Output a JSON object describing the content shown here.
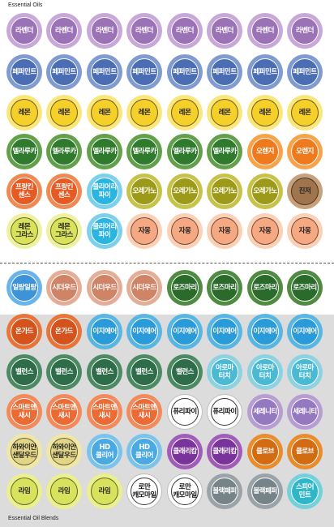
{
  "sheet_top_label": "Essential Oils",
  "sheet_bottom_label": "Essential Oil Blends",
  "colors": {
    "lavender": {
      "outer": "#c7a8d8",
      "inner": "#9a72b5",
      "text": "#ffffff"
    },
    "peppermint": {
      "outer": "#7f9bd0",
      "inner": "#4a6db4",
      "text": "#ffffff"
    },
    "lemon": {
      "outer": "#fbe67c",
      "inner": "#f5cf2a",
      "text": "#222222",
      "dark": true
    },
    "melaleuca": {
      "outer": "#62a04c",
      "inner": "#2f7a2c",
      "text": "#ffffff"
    },
    "orange": {
      "outer": "#f7a34a",
      "inner": "#ef7a1d",
      "text": "#ffffff"
    },
    "frankincense": {
      "outer": "#f08a55",
      "inner": "#e75a23",
      "text": "#ffffff"
    },
    "clary": {
      "outer": "#7cd0ec",
      "inner": "#2ab4e2",
      "text": "#ffffff"
    },
    "oregano": {
      "outer": "#c7c249",
      "inner": "#9c9a18",
      "text": "#ffffff"
    },
    "vetiver": {
      "outer": "#c7a07c",
      "inner": "#a0754e",
      "text": "#222222",
      "dark": true
    },
    "lemongrass": {
      "outer": "#eef2a0",
      "inner": "#d9e25a",
      "text": "#222222",
      "dark": true
    },
    "thyme": {
      "outer": "#fbd0b4",
      "inner": "#f6a883",
      "text": "#222222",
      "dark": true
    },
    "ylang": {
      "outer": "#6ab4ec",
      "inner": "#3d93d8",
      "text": "#ffffff"
    },
    "cedarwood": {
      "outer": "#e4ad95",
      "inner": "#cf8468",
      "text": "#ffffff"
    },
    "rosemary": {
      "outer": "#4f8c42",
      "inner": "#2a6a2a",
      "text": "#ffffff"
    },
    "onguard": {
      "outer": "#e8743a",
      "inner": "#d4531c",
      "text": "#ffffff"
    },
    "easyair": {
      "outer": "#59b6e3",
      "inner": "#2a9ad8",
      "text": "#ffffff"
    },
    "balance": {
      "outer": "#4c8a64",
      "inner": "#2e6c4a",
      "text": "#ffffff"
    },
    "aromatouch": {
      "outer": "#8dd2e2",
      "inner": "#4ab9d3",
      "text": "#ffffff"
    },
    "slim": {
      "outer": "#f38a5c",
      "inner": "#ec6a33",
      "text": "#ffffff"
    },
    "purify": {
      "outer": "#ffffff",
      "inner": "#ffffff",
      "text": "#111111",
      "dark": true
    },
    "serenity": {
      "outer": "#b69ed3",
      "inner": "#9479c1",
      "text": "#ffffff"
    },
    "hawaiian": {
      "outer": "#f0e7a6",
      "inner": "#e3d586",
      "text": "#222222",
      "dark": true
    },
    "hdclear": {
      "outer": "#7cc3ec",
      "inner": "#4aa8e2",
      "text": "#ffffff"
    },
    "clarycalm": {
      "outer": "#a05cb8",
      "inner": "#7a339a",
      "text": "#ffffff"
    },
    "clove": {
      "outer": "#e88c2c",
      "inner": "#d26b12",
      "text": "#ffffff"
    },
    "lime": {
      "outer": "#eaf08e",
      "inner": "#d8e25c",
      "text": "#222222",
      "dark": true
    },
    "chamomile": {
      "outer": "#ffffff",
      "inner": "#ffffff",
      "text": "#111111",
      "dark": true
    },
    "blackpepper": {
      "outer": "#9aa4a8",
      "inner": "#76848a",
      "text": "#ffffff"
    },
    "spearmint": {
      "outer": "#72d1dd",
      "inner": "#2fb6c8",
      "text": "#ffffff"
    }
  },
  "rows": [
    {
      "y": 16,
      "items": [
        {
          "name": "sticker-lavender",
          "label": "라벤더",
          "color": "lavender"
        },
        {
          "name": "sticker-lavender",
          "label": "라벤더",
          "color": "lavender"
        },
        {
          "name": "sticker-lavender",
          "label": "라벤더",
          "color": "lavender"
        },
        {
          "name": "sticker-lavender",
          "label": "라벤더",
          "color": "lavender"
        },
        {
          "name": "sticker-lavender",
          "label": "라벤더",
          "color": "lavender"
        },
        {
          "name": "sticker-lavender",
          "label": "라벤더",
          "color": "lavender"
        },
        {
          "name": "sticker-lavender",
          "label": "라벤더",
          "color": "lavender"
        },
        {
          "name": "sticker-lavender",
          "label": "라벤더",
          "color": "lavender"
        }
      ]
    },
    {
      "y": 67,
      "items": [
        {
          "name": "sticker-peppermint",
          "label": "페퍼민트",
          "color": "peppermint"
        },
        {
          "name": "sticker-peppermint",
          "label": "페퍼민트",
          "color": "peppermint"
        },
        {
          "name": "sticker-peppermint",
          "label": "페퍼민트",
          "color": "peppermint"
        },
        {
          "name": "sticker-peppermint",
          "label": "페퍼민트",
          "color": "peppermint"
        },
        {
          "name": "sticker-peppermint",
          "label": "페퍼민트",
          "color": "peppermint"
        },
        {
          "name": "sticker-peppermint",
          "label": "페퍼민트",
          "color": "peppermint"
        },
        {
          "name": "sticker-peppermint",
          "label": "페퍼민트",
          "color": "peppermint"
        },
        {
          "name": "sticker-peppermint",
          "label": "페퍼민트",
          "color": "peppermint"
        }
      ]
    },
    {
      "y": 117,
      "items": [
        {
          "name": "sticker-lemon",
          "label": "레몬",
          "color": "lemon"
        },
        {
          "name": "sticker-lemon",
          "label": "레몬",
          "color": "lemon"
        },
        {
          "name": "sticker-lemon",
          "label": "레몬",
          "color": "lemon"
        },
        {
          "name": "sticker-lemon",
          "label": "레몬",
          "color": "lemon"
        },
        {
          "name": "sticker-lemon",
          "label": "레몬",
          "color": "lemon"
        },
        {
          "name": "sticker-lemon",
          "label": "레몬",
          "color": "lemon"
        },
        {
          "name": "sticker-lemon",
          "label": "레몬",
          "color": "lemon"
        },
        {
          "name": "sticker-lemon",
          "label": "레몬",
          "color": "lemon"
        }
      ]
    },
    {
      "y": 165,
      "items": [
        {
          "name": "sticker-melaleuca",
          "label": "멜라루카",
          "color": "melaleuca"
        },
        {
          "name": "sticker-melaleuca",
          "label": "멜라루카",
          "color": "melaleuca"
        },
        {
          "name": "sticker-melaleuca",
          "label": "멜라루카",
          "color": "melaleuca"
        },
        {
          "name": "sticker-melaleuca",
          "label": "멜라루카",
          "color": "melaleuca"
        },
        {
          "name": "sticker-melaleuca",
          "label": "멜라루카",
          "color": "melaleuca"
        },
        {
          "name": "sticker-melaleuca",
          "label": "멜라루카",
          "color": "melaleuca"
        },
        {
          "name": "sticker-orange",
          "label": "오렌지",
          "color": "orange"
        },
        {
          "name": "sticker-orange",
          "label": "오렌지",
          "color": "orange"
        }
      ]
    },
    {
      "y": 214,
      "items": [
        {
          "name": "sticker-frankincense",
          "label": "프랑킨\n센스",
          "color": "frankincense"
        },
        {
          "name": "sticker-frankincense",
          "label": "프랑킨\n센스",
          "color": "frankincense"
        },
        {
          "name": "sticker-clary-sage",
          "label": "클리어리\n파이",
          "color": "clary"
        },
        {
          "name": "sticker-oregano",
          "label": "오레가노",
          "color": "oregano"
        },
        {
          "name": "sticker-oregano",
          "label": "오레가노",
          "color": "oregano"
        },
        {
          "name": "sticker-oregano",
          "label": "오레가노",
          "color": "oregano"
        },
        {
          "name": "sticker-oregano",
          "label": "오레가노",
          "color": "oregano"
        },
        {
          "name": "sticker-vetiver",
          "label": "진저",
          "color": "vetiver"
        }
      ]
    },
    {
      "y": 263,
      "items": [
        {
          "name": "sticker-lemongrass",
          "label": "레몬\n그라스",
          "color": "lemongrass"
        },
        {
          "name": "sticker-lemongrass",
          "label": "레몬\n그라스",
          "color": "lemongrass"
        },
        {
          "name": "sticker-clary-sage",
          "label": "클리어리\n파이",
          "color": "clary"
        },
        {
          "name": "sticker-thyme",
          "label": "자몽",
          "color": "thyme"
        },
        {
          "name": "sticker-thyme",
          "label": "자몽",
          "color": "thyme"
        },
        {
          "name": "sticker-thyme",
          "label": "자몽",
          "color": "thyme"
        },
        {
          "name": "sticker-thyme",
          "label": "자몽",
          "color": "thyme"
        },
        {
          "name": "sticker-thyme",
          "label": "자몽",
          "color": "thyme"
        }
      ]
    },
    {
      "y": 333,
      "items": [
        {
          "name": "sticker-ylang-ylang",
          "label": "일랑일랑",
          "color": "ylang"
        },
        {
          "name": "sticker-cedarwood",
          "label": "시더우드",
          "color": "cedarwood"
        },
        {
          "name": "sticker-cedarwood",
          "label": "시더우드",
          "color": "cedarwood"
        },
        {
          "name": "sticker-cedarwood",
          "label": "시더우드",
          "color": "cedarwood"
        },
        {
          "name": "sticker-rosemary",
          "label": "로즈마리",
          "color": "rosemary"
        },
        {
          "name": "sticker-rosemary",
          "label": "로즈마리",
          "color": "rosemary"
        },
        {
          "name": "sticker-rosemary",
          "label": "로즈마리",
          "color": "rosemary"
        },
        {
          "name": "sticker-rosemary",
          "label": "로즈마리",
          "color": "rosemary"
        }
      ]
    },
    {
      "y": 387,
      "items": [
        {
          "name": "sticker-on-guard",
          "label": "온가드",
          "color": "onguard"
        },
        {
          "name": "sticker-on-guard",
          "label": "온가드",
          "color": "onguard"
        },
        {
          "name": "sticker-easy-air",
          "label": "이지에어",
          "color": "easyair"
        },
        {
          "name": "sticker-easy-air",
          "label": "이지에어",
          "color": "easyair"
        },
        {
          "name": "sticker-easy-air",
          "label": "이지에어",
          "color": "easyair"
        },
        {
          "name": "sticker-easy-air",
          "label": "이지에어",
          "color": "easyair"
        },
        {
          "name": "sticker-easy-air",
          "label": "이지에어",
          "color": "easyair"
        },
        {
          "name": "sticker-easy-air",
          "label": "이지에어",
          "color": "easyair"
        }
      ]
    },
    {
      "y": 437,
      "items": [
        {
          "name": "sticker-balance",
          "label": "밸런스",
          "color": "balance"
        },
        {
          "name": "sticker-balance",
          "label": "밸런스",
          "color": "balance"
        },
        {
          "name": "sticker-balance",
          "label": "밸런스",
          "color": "balance"
        },
        {
          "name": "sticker-balance",
          "label": "밸런스",
          "color": "balance"
        },
        {
          "name": "sticker-balance",
          "label": "밸런스",
          "color": "balance"
        },
        {
          "name": "sticker-aromatouch",
          "label": "아로마\n터치",
          "color": "aromatouch"
        },
        {
          "name": "sticker-aromatouch",
          "label": "아로마\n터치",
          "color": "aromatouch"
        },
        {
          "name": "sticker-aromatouch",
          "label": "아로마\n터치",
          "color": "aromatouch"
        }
      ]
    },
    {
      "y": 486,
      "items": [
        {
          "name": "sticker-slim-sassy",
          "label": "스마트앤\n새시",
          "color": "slim"
        },
        {
          "name": "sticker-slim-sassy",
          "label": "스마트앤\n새시",
          "color": "slim"
        },
        {
          "name": "sticker-slim-sassy",
          "label": "스마트앤\n새시",
          "color": "slim"
        },
        {
          "name": "sticker-slim-sassy",
          "label": "스마트앤\n새시",
          "color": "slim"
        },
        {
          "name": "sticker-purify",
          "label": "퓨리파이",
          "color": "purify"
        },
        {
          "name": "sticker-purify",
          "label": "퓨리파이",
          "color": "purify"
        },
        {
          "name": "sticker-serenity",
          "label": "세레니티",
          "color": "serenity"
        },
        {
          "name": "sticker-serenity",
          "label": "세레니티",
          "color": "serenity"
        }
      ]
    },
    {
      "y": 535,
      "items": [
        {
          "name": "sticker-hawaiian-sandalwood",
          "label": "하와이안\n샌달우드",
          "color": "hawaiian"
        },
        {
          "name": "sticker-hawaiian-sandalwood",
          "label": "하와이안\n샌달우드",
          "color": "hawaiian"
        },
        {
          "name": "sticker-hd-clear",
          "label": "HD\n클리어",
          "color": "hdclear"
        },
        {
          "name": "sticker-hd-clear",
          "label": "HD\n클리어",
          "color": "hdclear"
        },
        {
          "name": "sticker-clary-calm",
          "label": "클래리캄",
          "color": "clarycalm"
        },
        {
          "name": "sticker-clary-calm",
          "label": "클래리캄",
          "color": "clarycalm"
        },
        {
          "name": "sticker-clove",
          "label": "클로브",
          "color": "clove"
        },
        {
          "name": "sticker-clove",
          "label": "클로브",
          "color": "clove"
        }
      ]
    },
    {
      "y": 584,
      "items": [
        {
          "name": "sticker-lime",
          "label": "라임",
          "color": "lime"
        },
        {
          "name": "sticker-lime",
          "label": "라임",
          "color": "lime"
        },
        {
          "name": "sticker-lime",
          "label": "라임",
          "color": "lime"
        },
        {
          "name": "sticker-roman-chamomile",
          "label": "로만\n캐모마일",
          "color": "chamomile"
        },
        {
          "name": "sticker-roman-chamomile",
          "label": "로만\n캐모마일",
          "color": "chamomile"
        },
        {
          "name": "sticker-black-pepper",
          "label": "블랙페퍼",
          "color": "blackpepper"
        },
        {
          "name": "sticker-black-pepper",
          "label": "블랙페퍼",
          "color": "blackpepper"
        },
        {
          "name": "sticker-spearmint",
          "label": "스피어\n민트",
          "color": "spearmint"
        }
      ]
    }
  ]
}
